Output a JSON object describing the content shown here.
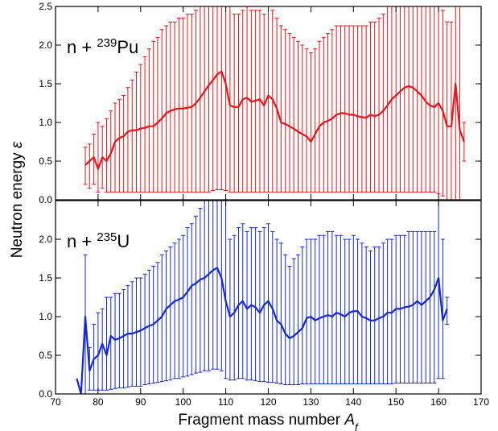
{
  "axis_labels": {
    "x": [
      "Fragment mass number ",
      "A",
      "f"
    ],
    "y": [
      "Neutron energy ",
      "ε"
    ]
  },
  "chart_data": [
    {
      "type": "line",
      "annotation": [
        "n + ",
        "239",
        "Pu"
      ],
      "xlim": [
        70,
        170
      ],
      "xticks": [
        70,
        80,
        90,
        100,
        110,
        120,
        130,
        140,
        150,
        160,
        170
      ],
      "ylim": [
        0,
        2.5
      ],
      "yticks": [
        {
          "value": 0,
          "label": "0.0"
        },
        0.5,
        {
          "value": 1,
          "label": "1.0"
        },
        1.5,
        {
          "value": 2,
          "label": "2.0"
        },
        2.5
      ],
      "series": [
        {
          "color": "#e8141a",
          "x": [
            77,
            78,
            79,
            80,
            81,
            82,
            83,
            84,
            85,
            86,
            87,
            88,
            89,
            90,
            91,
            92,
            93,
            94,
            95,
            96,
            97,
            98,
            99,
            100,
            101,
            102,
            103,
            104,
            105,
            106,
            107,
            108,
            109,
            110,
            111,
            112,
            113,
            114,
            115,
            116,
            117,
            118,
            119,
            120,
            121,
            122,
            123,
            124,
            125,
            126,
            127,
            128,
            129,
            130,
            131,
            132,
            133,
            134,
            135,
            136,
            137,
            138,
            139,
            140,
            141,
            142,
            143,
            144,
            145,
            146,
            147,
            148,
            149,
            150,
            151,
            152,
            153,
            154,
            155,
            156,
            157,
            158,
            159,
            160,
            161,
            162,
            163,
            164,
            165,
            166
          ],
          "values": [
            0.45,
            0.5,
            0.55,
            0.4,
            0.55,
            0.5,
            0.6,
            0.75,
            0.8,
            0.82,
            0.88,
            0.9,
            0.9,
            0.92,
            0.93,
            0.95,
            0.95,
            1.0,
            1.05,
            1.12,
            1.15,
            1.17,
            1.18,
            1.18,
            1.19,
            1.2,
            1.25,
            1.32,
            1.4,
            1.48,
            1.55,
            1.62,
            1.66,
            1.5,
            1.22,
            1.2,
            1.2,
            1.3,
            1.32,
            1.27,
            1.28,
            1.3,
            1.22,
            1.35,
            1.3,
            1.18,
            1.0,
            0.98,
            0.95,
            0.92,
            0.88,
            0.85,
            0.82,
            0.75,
            0.85,
            0.95,
            1.0,
            1.02,
            1.05,
            1.1,
            1.12,
            1.12,
            1.1,
            1.1,
            1.08,
            1.07,
            1.06,
            1.1,
            1.08,
            1.1,
            1.15,
            1.22,
            1.3,
            1.35,
            1.4,
            1.45,
            1.47,
            1.45,
            1.4,
            1.35,
            1.27,
            1.22,
            1.2,
            1.25,
            1.15,
            0.95,
            0.95,
            1.5,
            0.9,
            0.75
          ],
          "upper": [
            0.68,
            0.72,
            0.85,
            1.0,
            0.95,
            1.05,
            1.15,
            1.25,
            1.3,
            1.35,
            1.45,
            1.55,
            1.65,
            1.75,
            1.85,
            1.95,
            2.05,
            2.1,
            2.2,
            2.25,
            2.3,
            2.3,
            2.35,
            2.35,
            2.4,
            2.4,
            2.45,
            2.5,
            2.55,
            2.6,
            2.7,
            2.8,
            2.8,
            2.7,
            2.6,
            2.4,
            2.4,
            2.45,
            2.5,
            2.45,
            2.45,
            2.45,
            2.4,
            2.5,
            2.45,
            2.35,
            2.25,
            2.2,
            2.15,
            2.1,
            2.05,
            2.0,
            1.95,
            1.9,
            1.95,
            2.05,
            2.1,
            2.15,
            2.2,
            2.25,
            2.25,
            2.25,
            2.25,
            2.25,
            2.25,
            2.25,
            2.25,
            2.3,
            2.3,
            2.35,
            2.4,
            2.5,
            2.55,
            2.6,
            2.65,
            2.7,
            2.7,
            2.7,
            2.65,
            2.6,
            2.55,
            2.5,
            2.5,
            2.55,
            2.45,
            2.3,
            2.3,
            2.8,
            2.6,
            1.0
          ],
          "lower": [
            0.2,
            0.15,
            0.2,
            0.1,
            0.15,
            0.1,
            0.1,
            0.1,
            0.1,
            0.1,
            0.1,
            0.1,
            0.1,
            0.1,
            0.1,
            0.1,
            0.1,
            0.1,
            0.1,
            0.1,
            0.1,
            0.1,
            0.1,
            0.1,
            0.1,
            0.1,
            0.1,
            0.1,
            0.1,
            0.1,
            0.12,
            0.13,
            0.13,
            0.12,
            0.1,
            0.1,
            0.1,
            0.1,
            0.1,
            0.1,
            0.1,
            0.1,
            0.1,
            0.1,
            0.1,
            0.1,
            0.1,
            0.1,
            0.1,
            0.1,
            0.1,
            0.1,
            0.1,
            0.1,
            0.1,
            0.1,
            0.1,
            0.1,
            0.1,
            0.1,
            0.1,
            0.1,
            0.1,
            0.1,
            0.1,
            0.1,
            0.1,
            0.1,
            0.1,
            0.1,
            0.1,
            0.1,
            0.1,
            0.1,
            0.1,
            0.1,
            0.1,
            0.1,
            0.1,
            0.1,
            0.1,
            0.1,
            0.1,
            0.08,
            0.05,
            0.0,
            0.0,
            -0.1,
            -0.1,
            0.5
          ]
        }
      ]
    },
    {
      "type": "line",
      "annotation": [
        "n + ",
        "235",
        "U"
      ],
      "xlim": [
        70,
        170
      ],
      "xticks": [
        70,
        80,
        90,
        100,
        110,
        120,
        130,
        140,
        150,
        160,
        170
      ],
      "ylim": [
        0,
        2.5
      ],
      "yticks": [
        {
          "value": 0,
          "label": "0.0"
        },
        0.5,
        {
          "value": 1,
          "label": "1.0"
        },
        1.5,
        {
          "value": 2,
          "label": "2.0"
        }
      ],
      "series": [
        {
          "color": "#1428d8",
          "x": [
            75,
            76,
            77,
            78,
            79,
            80,
            81,
            82,
            83,
            84,
            85,
            86,
            87,
            88,
            89,
            90,
            91,
            92,
            93,
            94,
            95,
            96,
            97,
            98,
            99,
            100,
            101,
            102,
            103,
            104,
            105,
            106,
            107,
            108,
            109,
            110,
            111,
            112,
            113,
            114,
            115,
            116,
            117,
            118,
            119,
            120,
            121,
            122,
            123,
            124,
            125,
            126,
            127,
            128,
            129,
            130,
            131,
            132,
            133,
            134,
            135,
            136,
            137,
            138,
            139,
            140,
            141,
            142,
            143,
            144,
            145,
            146,
            147,
            148,
            149,
            150,
            151,
            152,
            153,
            154,
            155,
            156,
            157,
            158,
            159,
            160,
            161,
            162
          ],
          "values": [
            0.2,
            0.0,
            1.0,
            0.3,
            0.45,
            0.5,
            0.65,
            0.5,
            0.75,
            0.7,
            0.72,
            0.75,
            0.78,
            0.78,
            0.8,
            0.82,
            0.85,
            0.88,
            0.9,
            0.95,
            1.0,
            1.1,
            1.15,
            1.2,
            1.22,
            1.25,
            1.32,
            1.4,
            1.43,
            1.48,
            1.5,
            1.55,
            1.6,
            1.63,
            1.5,
            1.2,
            1.0,
            1.05,
            1.15,
            1.2,
            1.1,
            1.15,
            1.12,
            1.05,
            1.15,
            1.2,
            1.1,
            0.95,
            0.9,
            0.78,
            0.72,
            0.75,
            0.8,
            0.85,
            0.98,
            1.0,
            0.95,
            0.98,
            1.0,
            1.02,
            1.0,
            1.05,
            1.03,
            1.0,
            1.05,
            1.07,
            1.07,
            1.0,
            0.98,
            0.95,
            0.95,
            0.98,
            1.0,
            1.05,
            1.05,
            1.1,
            1.1,
            1.12,
            1.13,
            1.15,
            1.2,
            1.15,
            1.2,
            1.25,
            1.35,
            1.5,
            0.95,
            1.1
          ],
          "upper": [
            null,
            null,
            1.8,
            0.6,
            0.9,
            1.05,
            1.1,
            1.25,
            1.25,
            1.3,
            1.3,
            1.35,
            1.4,
            1.45,
            1.5,
            1.5,
            1.55,
            1.6,
            1.65,
            1.7,
            1.8,
            1.85,
            1.9,
            1.95,
            2.0,
            2.05,
            2.15,
            2.2,
            2.3,
            2.4,
            2.6,
            2.7,
            2.8,
            2.9,
            2.9,
            2.5,
            2.0,
            2.05,
            2.15,
            2.2,
            2.1,
            2.15,
            2.15,
            2.1,
            2.15,
            2.2,
            2.1,
            2.0,
            1.95,
            1.8,
            1.65,
            1.75,
            1.8,
            1.9,
            2.0,
            2.0,
            2.0,
            2.05,
            2.05,
            2.1,
            2.1,
            2.05,
            2.05,
            2.0,
            2.0,
            2.05,
            2.0,
            1.95,
            1.9,
            1.85,
            1.9,
            1.9,
            1.95,
            2.0,
            2.0,
            2.05,
            2.05,
            2.05,
            2.1,
            2.1,
            2.1,
            2.1,
            2.1,
            2.1,
            2.1,
            2.8,
            2.0,
            1.25
          ],
          "lower": [
            null,
            null,
            0.0,
            0.05,
            0.05,
            0.05,
            0.05,
            0.05,
            0.06,
            0.07,
            0.08,
            0.08,
            0.09,
            0.1,
            0.1,
            0.1,
            0.12,
            0.13,
            0.14,
            0.15,
            0.16,
            0.17,
            0.18,
            0.2,
            0.2,
            0.22,
            0.23,
            0.25,
            0.27,
            0.28,
            0.3,
            0.3,
            0.32,
            0.32,
            0.3,
            0.2,
            0.18,
            0.18,
            0.2,
            0.2,
            0.18,
            0.18,
            0.17,
            0.16,
            0.16,
            0.15,
            0.15,
            0.14,
            0.13,
            0.12,
            0.12,
            0.12,
            0.12,
            0.13,
            0.13,
            0.13,
            0.13,
            0.13,
            0.13,
            0.13,
            0.13,
            0.13,
            0.13,
            0.13,
            0.13,
            0.13,
            0.13,
            0.13,
            0.13,
            0.13,
            0.13,
            0.13,
            0.13,
            0.13,
            0.13,
            0.14,
            0.14,
            0.14,
            0.14,
            0.14,
            0.14,
            0.14,
            0.14,
            0.14,
            0.14,
            0.2,
            0.2,
            0.9
          ]
        }
      ]
    }
  ]
}
